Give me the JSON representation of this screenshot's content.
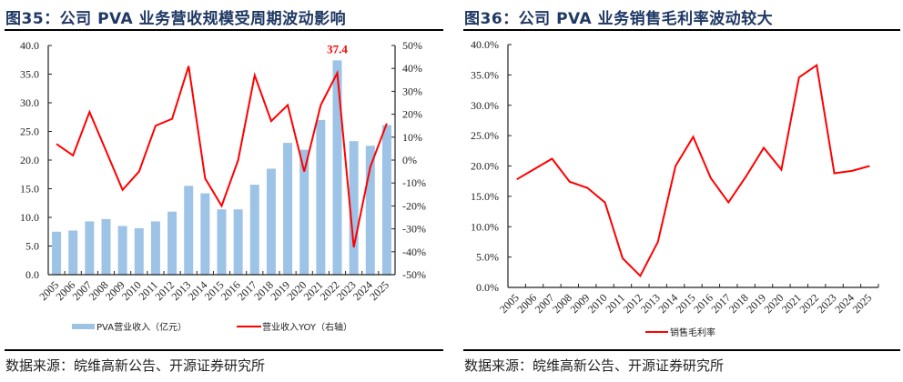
{
  "colors": {
    "title": "#1f3864",
    "bar": "#9dc3e6",
    "line": "#ff0000",
    "axis": "#222222"
  },
  "left_panel": {
    "title": "图35：公司 PVA 业务营收规模受周期波动影响",
    "source": "数据来源：皖维高新公告、开源证券研究所"
  },
  "right_panel": {
    "title": "图36：公司 PVA 业务销售毛利率波动较大",
    "source": "数据来源：皖维高新公告、开源证券研究所"
  },
  "chart_data": [
    {
      "type": "bar",
      "title": "图35：公司 PVA 业务营收规模受周期波动影响",
      "categories": [
        "2005",
        "2006",
        "2007",
        "2008",
        "2009",
        "2010",
        "2011",
        "2012",
        "2013",
        "2014",
        "2015",
        "2016",
        "2017",
        "2018",
        "2019",
        "2020",
        "2021",
        "2022",
        "2023",
        "2024",
        "2025"
      ],
      "series": [
        {
          "name": "PVA营业收入（亿元）",
          "type": "bar",
          "axis": "left",
          "values": [
            7.5,
            7.7,
            9.3,
            9.7,
            8.5,
            8.1,
            9.3,
            11.0,
            15.5,
            14.2,
            11.4,
            11.4,
            15.7,
            18.5,
            23.0,
            21.8,
            27.0,
            37.4,
            23.3,
            22.5,
            26.1
          ]
        },
        {
          "name": "营业收入YOY（右轴）",
          "type": "line",
          "axis": "right",
          "values": [
            7,
            2,
            21,
            4,
            -13,
            -5,
            15,
            18,
            41,
            -8,
            -20,
            0,
            37,
            17,
            24,
            -5,
            24,
            38,
            -38,
            -3,
            16
          ]
        }
      ],
      "ylim": [
        0,
        40
      ],
      "yticks": [
        "0.0",
        "5.0",
        "10.0",
        "15.0",
        "20.0",
        "25.0",
        "30.0",
        "35.0",
        "40.0"
      ],
      "y2lim": [
        -50,
        50
      ],
      "y2ticks": [
        "-50%",
        "-40%",
        "-30%",
        "-20%",
        "-10%",
        "0%",
        "10%",
        "20%",
        "30%",
        "40%",
        "50%"
      ],
      "annotations": [
        {
          "category": "2022",
          "text": "37.4"
        }
      ],
      "legend": {
        "placement": "bottom",
        "entries": [
          "PVA营业收入（亿元）",
          "营业收入YOY（右轴）"
        ]
      },
      "grid": false
    },
    {
      "type": "line",
      "title": "图36：公司 PVA 业务销售毛利率波动较大",
      "categories": [
        "2005",
        "2006",
        "2007",
        "2008",
        "2009",
        "2010",
        "2011",
        "2012",
        "2013",
        "2014",
        "2015",
        "2016",
        "2017",
        "2018",
        "2019",
        "2020",
        "2021",
        "2022",
        "2023",
        "2024",
        "2025"
      ],
      "series": [
        {
          "name": "销售毛利率",
          "values": [
            17.8,
            19.5,
            21.2,
            17.4,
            16.4,
            14.0,
            4.8,
            1.9,
            7.5,
            20.0,
            24.8,
            18.0,
            14.0,
            18.3,
            23.0,
            19.4,
            34.6,
            36.6,
            18.8,
            19.2,
            20.0
          ]
        }
      ],
      "ylim": [
        0,
        40
      ],
      "yticks": [
        "0.0%",
        "5.0%",
        "10.0%",
        "15.0%",
        "20.0%",
        "25.0%",
        "30.0%",
        "35.0%",
        "40.0%"
      ],
      "legend": {
        "placement": "bottom",
        "entries": [
          "销售毛利率"
        ]
      },
      "grid": false
    }
  ]
}
